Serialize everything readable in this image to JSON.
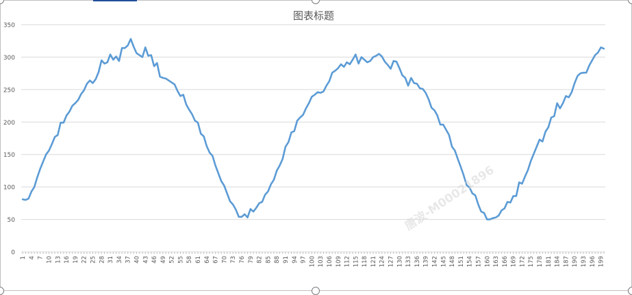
{
  "chart_data": {
    "type": "line",
    "title": "图表标题",
    "xlabel": "",
    "ylabel": "",
    "ylim": [
      0,
      350
    ],
    "yticks": [
      0,
      50,
      100,
      150,
      200,
      250,
      300,
      350
    ],
    "grid": true,
    "legend": "none",
    "x_range": [
      1,
      200
    ],
    "x_tick_step": 3,
    "series": [
      {
        "values": [
          81,
          80,
          82,
          93,
          100,
          115,
          128,
          139,
          150,
          156,
          166,
          177,
          180,
          199,
          199,
          210,
          216,
          225,
          229,
          234,
          243,
          249,
          259,
          264,
          260,
          266,
          277,
          295,
          290,
          292,
          304,
          296,
          301,
          294,
          314,
          314,
          318,
          328,
          316,
          306,
          303,
          300,
          315,
          302,
          303,
          286,
          291,
          270,
          268,
          267,
          264,
          261,
          258,
          248,
          240,
          242,
          227,
          219,
          212,
          202,
          199,
          182,
          178,
          163,
          153,
          148,
          133,
          121,
          109,
          102,
          90,
          78,
          73,
          65,
          54,
          54,
          58,
          53,
          66,
          62,
          68,
          75,
          77,
          88,
          93,
          104,
          111,
          125,
          133,
          143,
          162,
          169,
          184,
          186,
          202,
          207,
          211,
          221,
          229,
          239,
          242,
          246,
          245,
          247,
          256,
          263,
          276,
          279,
          283,
          289,
          285,
          292,
          289,
          296,
          304,
          290,
          300,
          296,
          292,
          294,
          300,
          302,
          305,
          301,
          293,
          288,
          282,
          294,
          293,
          283,
          272,
          268,
          256,
          268,
          260,
          259,
          252,
          251,
          245,
          235,
          222,
          218,
          210,
          196,
          196,
          188,
          180,
          162,
          156,
          143,
          131,
          118,
          103,
          99,
          90,
          87,
          73,
          62,
          60,
          50,
          50,
          52,
          53,
          56,
          64,
          67,
          77,
          76,
          86,
          86,
          107,
          105,
          116,
          126,
          140,
          151,
          162,
          173,
          170,
          185,
          192,
          207,
          209,
          229,
          221,
          229,
          240,
          238,
          246,
          260,
          271,
          275,
          276,
          276,
          287,
          295,
          303,
          307,
          315,
          313
        ]
      }
    ],
    "line_color": "#5b9bd5",
    "watermark": "唐波-M00021896"
  }
}
